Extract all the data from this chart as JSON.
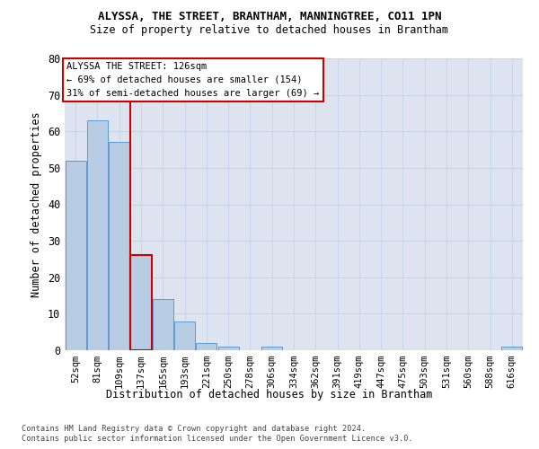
{
  "title": "ALYSSA, THE STREET, BRANTHAM, MANNINGTREE, CO11 1PN",
  "subtitle": "Size of property relative to detached houses in Brantham",
  "xlabel_bottom": "Distribution of detached houses by size in Brantham",
  "ylabel": "Number of detached properties",
  "bar_labels": [
    "52sqm",
    "81sqm",
    "109sqm",
    "137sqm",
    "165sqm",
    "193sqm",
    "221sqm",
    "250sqm",
    "278sqm",
    "306sqm",
    "334sqm",
    "362sqm",
    "391sqm",
    "419sqm",
    "447sqm",
    "475sqm",
    "503sqm",
    "531sqm",
    "560sqm",
    "588sqm",
    "616sqm"
  ],
  "bar_values": [
    52,
    63,
    57,
    26,
    14,
    8,
    2,
    1,
    0,
    1,
    0,
    0,
    0,
    0,
    0,
    0,
    0,
    0,
    0,
    0,
    1
  ],
  "bar_color": "#b8cce4",
  "bar_edge_color": "#5b9bd5",
  "highlight_bar_index": 3,
  "annotation_text_line1": "ALYSSA THE STREET: 126sqm",
  "annotation_text_line2": "← 69% of detached houses are smaller (154)",
  "annotation_text_line3": "31% of semi-detached houses are larger (69) →",
  "annotation_box_edge_color": "#cc0000",
  "ylim": [
    0,
    80
  ],
  "yticks": [
    0,
    10,
    20,
    30,
    40,
    50,
    60,
    70,
    80
  ],
  "grid_color": "#c8d4e8",
  "bg_color": "#dde4f0",
  "footer_line1": "Contains HM Land Registry data © Crown copyright and database right 2024.",
  "footer_line2": "Contains public sector information licensed under the Open Government Licence v3.0."
}
